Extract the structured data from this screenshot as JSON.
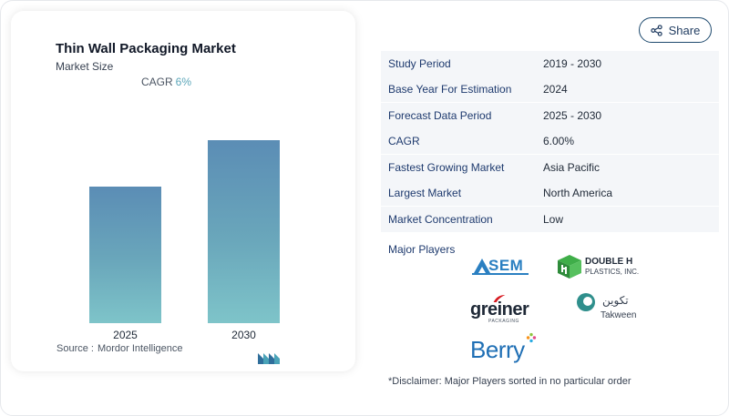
{
  "chart": {
    "title": "Thin Wall Packaging Market",
    "subtitle": "Market Size",
    "cagr_label": "CAGR",
    "cagr_value": "6%",
    "source_label": "Source :",
    "source_name": "Mordor Intelligence",
    "colors": {
      "bar_top": "#5b8db5",
      "bar_bottom": "#7ec4c9",
      "cagr_value": "#5ba6b9"
    }
  },
  "chart_data": {
    "type": "bar",
    "title": "Thin Wall Packaging Market",
    "subtitle": "Market Size",
    "categories": [
      "2025",
      "2030"
    ],
    "values": [
      1.0,
      1.34
    ],
    "xlabel": "",
    "ylabel": "",
    "grid": false,
    "legend": "none"
  },
  "share": {
    "label": "Share"
  },
  "table": {
    "rows": [
      {
        "key": "Study Period",
        "value": "2019 - 2030"
      },
      {
        "key": "Base Year For Estimation",
        "value": "2024"
      },
      {
        "key": "Forecast Data Period",
        "value": "2025 - 2030"
      },
      {
        "key": "CAGR",
        "value": "6.00%"
      },
      {
        "key": "Fastest Growing Market",
        "value": "Asia Pacific"
      },
      {
        "key": "Largest Market",
        "value": "North America"
      },
      {
        "key": "Market Concentration",
        "value": "Low"
      }
    ]
  },
  "players": {
    "title": "Major Players",
    "logos": {
      "sem": "SEM",
      "doubleh_line1": "DOUBLE H",
      "doubleh_line2": "PLASTICS, INC.",
      "greiner": "greiner",
      "greiner_sub": "PACKAGING",
      "takween_ar": "تكوين",
      "takween_en": "Takween",
      "berry": "Berry"
    }
  },
  "disclaimer": "*Disclaimer: Major Players sorted in no particular order"
}
